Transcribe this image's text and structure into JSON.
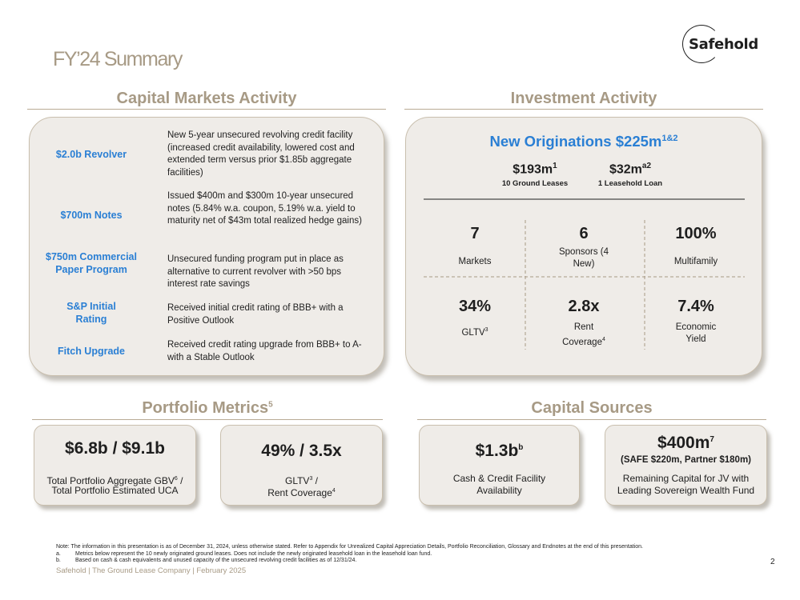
{
  "logo": {
    "text": "Safehold"
  },
  "title": "FY’24 Summary",
  "capital_markets": {
    "title": "Capital Markets Activity",
    "items": [
      {
        "label": "$2.0b Revolver",
        "desc": "New 5-year unsecured revolving credit facility (increased credit availability, lowered cost and extended term versus prior $1.85b aggregate facilities)"
      },
      {
        "label": "$700m Notes",
        "desc": "Issued $400m and $300m 10-year unsecured notes (5.84% w.a. coupon, 5.19% w.a. yield to maturity net of $43m total realized hedge gains)"
      },
      {
        "label": "$750m Commercial Paper Program",
        "desc": "Unsecured funding program put in place as alternative to current revolver with >50 bps interest rate savings"
      },
      {
        "label": "S&P Initial Rating",
        "desc": "Received initial credit rating of BBB+ with a Positive Outlook"
      },
      {
        "label": "Fitch Upgrade",
        "desc": "Received credit rating upgrade from BBB+ to A- with a Stable Outlook"
      }
    ]
  },
  "investment": {
    "title": "Investment Activity",
    "originations_title": "New Originations $225m",
    "originations_sup": "1&2",
    "left_value": "$193m",
    "left_sup": "1",
    "left_caption": "10 Ground Leases",
    "right_value": "$32m",
    "right_sup": "a2",
    "right_caption": "1 Leasehold Loan",
    "stats": [
      {
        "value": "7",
        "label": "Markets"
      },
      {
        "value": "6",
        "label": "Sponsors (4 New)"
      },
      {
        "value": "100%",
        "label": "Multifamily"
      },
      {
        "value": "34%",
        "label": "GLTV",
        "label_sup": "3"
      },
      {
        "value": "2.8x",
        "label": "Rent Coverage",
        "label_sup": "4"
      },
      {
        "value": "7.4%",
        "label": "Economic Yield"
      }
    ]
  },
  "portfolio": {
    "title": "Portfolio Metrics",
    "title_sup": "5",
    "card1": {
      "value": "$6.8b / $9.1b",
      "label_a": "Total Portfolio Aggregate GBV",
      "label_a_sup": "6",
      "label_a_tail": " /",
      "label_b": "Total Portfolio Estimated UCA"
    },
    "card2": {
      "value": "49% / 3.5x",
      "label_a": "GLTV",
      "label_a_sup": "3",
      "label_a_tail": " /",
      "label_b": "Rent Coverage",
      "label_b_sup": "4"
    }
  },
  "capital_sources": {
    "title": "Capital Sources",
    "card1": {
      "value": "$1.3b",
      "value_sup": "b",
      "label_a": "Cash & Credit Facility",
      "label_b": "Availability"
    },
    "card2": {
      "value": "$400m",
      "value_sup": "7",
      "sub": "(SAFE $220m, Partner $180m)",
      "label_a": "Remaining Capital for JV with",
      "label_b": "Leading Sovereign Wealth Fund"
    }
  },
  "notes": {
    "main": "Note: The information in this presentation is as of December 31, 2024, unless otherwise stated. Refer to Appendix for Unrealized Capital Appreciation Details, Portfolio Reconciliation, Glossary and Endnotes at the end of this presentation.",
    "a_key": "a.",
    "a": "Metrics below represent the 10 newly originated ground leases. Does not include the newly originated leasehold loan in the leasehold loan fund.",
    "b_key": "b.",
    "b": "Based on cash & cash equivalents and unused capacity of the unsecured revolving credit facilities as of 12/31/24."
  },
  "footer": "Safehold | The Ground Lease Company | February 2025",
  "page_number": "2"
}
